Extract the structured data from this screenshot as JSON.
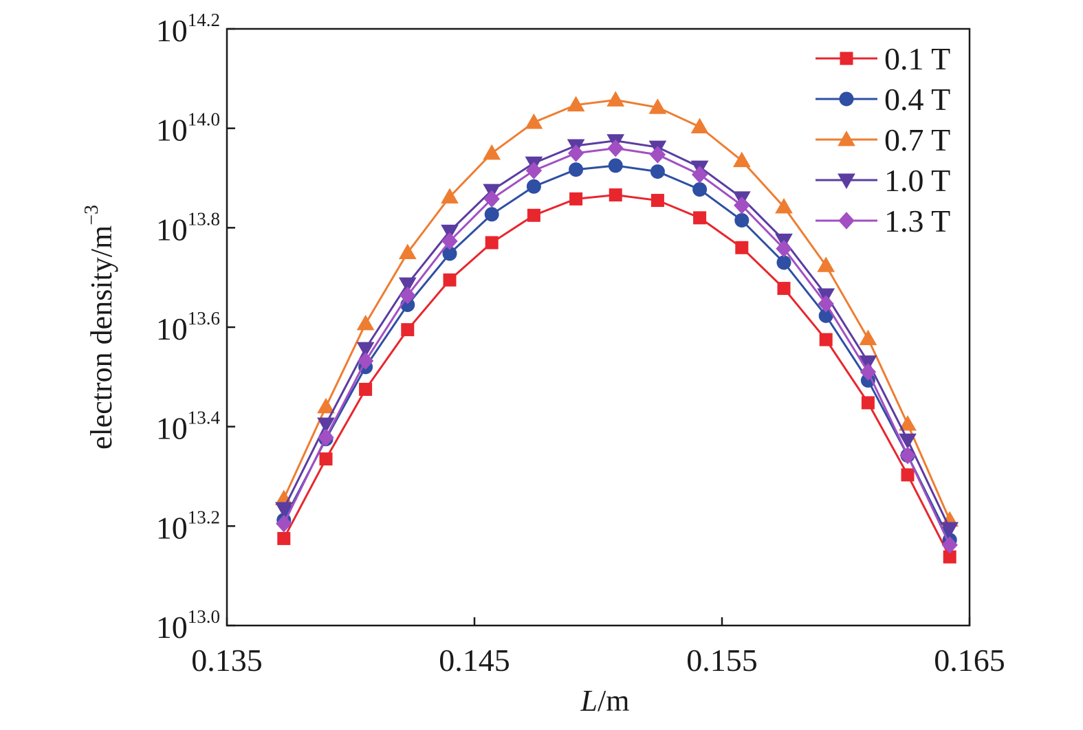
{
  "chart_data": {
    "type": "line",
    "title": "",
    "xlabel": {
      "italic": "L",
      "rest": "/m"
    },
    "ylabel": {
      "base": "electron density/m",
      "sup": "−3"
    },
    "xlim": [
      0.135,
      0.165
    ],
    "ylim_log10": [
      13.0,
      14.2
    ],
    "y_scale": "log",
    "x_ticks": [
      "0.135",
      "0.145",
      "0.155",
      "0.165"
    ],
    "y_ticks": [
      {
        "base": "10",
        "exp": "13.0"
      },
      {
        "base": "10",
        "exp": "13.2"
      },
      {
        "base": "10",
        "exp": "13.4"
      },
      {
        "base": "10",
        "exp": "13.6"
      },
      {
        "base": "10",
        "exp": "13.8"
      },
      {
        "base": "10",
        "exp": "14.0"
      },
      {
        "base": "10",
        "exp": "14.2"
      }
    ],
    "grid": false,
    "legend_position": "top-right",
    "x": [
      0.1373,
      0.139,
      0.1406,
      0.1423,
      0.144,
      0.1457,
      0.1474,
      0.1491,
      0.1507,
      0.1524,
      0.1541,
      0.1558,
      0.1575,
      0.1592,
      0.1609,
      0.1625,
      0.1642
    ],
    "series": [
      {
        "name": "0.1 T",
        "color": "#e8262d",
        "marker": "square",
        "log10_values": [
          13.175,
          13.335,
          13.475,
          13.595,
          13.695,
          13.77,
          13.825,
          13.858,
          13.866,
          13.855,
          13.82,
          13.76,
          13.678,
          13.575,
          13.448,
          13.303,
          13.138
        ]
      },
      {
        "name": "0.4 T",
        "color": "#2e4fa3",
        "marker": "circle",
        "log10_values": [
          13.212,
          13.375,
          13.52,
          13.645,
          13.748,
          13.827,
          13.883,
          13.917,
          13.925,
          13.913,
          13.877,
          13.815,
          13.73,
          13.623,
          13.493,
          13.342,
          13.172
        ]
      },
      {
        "name": "0.7 T",
        "color": "#ee7d31",
        "marker": "triangle-up",
        "log10_values": [
          13.255,
          13.44,
          13.607,
          13.75,
          13.862,
          13.95,
          14.012,
          14.047,
          14.057,
          14.042,
          14.003,
          13.935,
          13.842,
          13.724,
          13.577,
          13.405,
          13.212
        ]
      },
      {
        "name": "1.0 T",
        "color": "#5b3ca1",
        "marker": "triangle-down",
        "log10_values": [
          13.235,
          13.405,
          13.557,
          13.687,
          13.793,
          13.875,
          13.93,
          13.965,
          13.975,
          13.962,
          13.922,
          13.86,
          13.775,
          13.665,
          13.53,
          13.373,
          13.195
        ]
      },
      {
        "name": "1.3 T",
        "color": "#a24fc3",
        "marker": "diamond",
        "log10_values": [
          13.205,
          13.378,
          13.532,
          13.664,
          13.773,
          13.858,
          13.915,
          13.95,
          13.96,
          13.947,
          13.907,
          13.845,
          13.758,
          13.647,
          13.51,
          13.342,
          13.162
        ]
      }
    ]
  }
}
